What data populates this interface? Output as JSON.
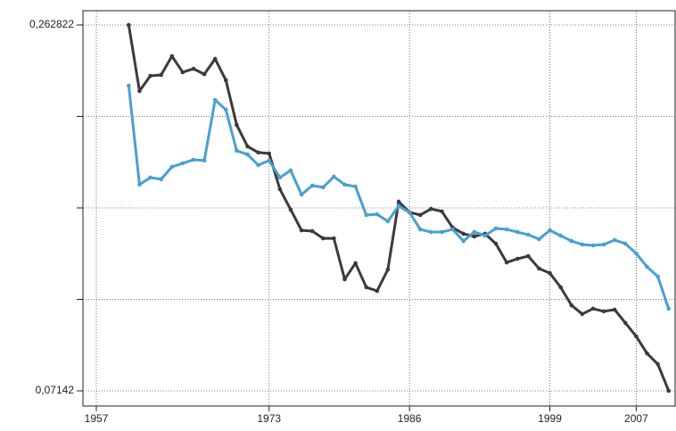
{
  "chart_data": {
    "type": "line",
    "x": [
      1960,
      1961,
      1962,
      1963,
      1964,
      1965,
      1966,
      1967,
      1968,
      1969,
      1970,
      1971,
      1972,
      1973,
      1974,
      1975,
      1976,
      1977,
      1978,
      1979,
      1980,
      1981,
      1982,
      1983,
      1984,
      1985,
      1986,
      1987,
      1988,
      1989,
      1990,
      1991,
      1992,
      1993,
      1994,
      1995,
      1996,
      1997,
      1998,
      1999,
      2000,
      2001,
      2002,
      2003,
      2004,
      2005,
      2006,
      2007,
      2008,
      2009,
      2010
    ],
    "series": [
      {
        "color": "#3b3b3b",
        "values": [
          0.2628,
          0.2283,
          0.2362,
          0.2367,
          0.2465,
          0.2381,
          0.2399,
          0.2371,
          0.2451,
          0.2339,
          0.2105,
          0.1993,
          0.1961,
          0.1956,
          0.1769,
          0.1662,
          0.1554,
          0.155,
          0.1512,
          0.1512,
          0.1298,
          0.1382,
          0.1256,
          0.1237,
          0.1349,
          0.1704,
          0.1648,
          0.1634,
          0.1666,
          0.1653,
          0.1568,
          0.1536,
          0.1522,
          0.1536,
          0.1484,
          0.1386,
          0.1405,
          0.1419,
          0.1354,
          0.133,
          0.1256,
          0.1162,
          0.1116,
          0.1144,
          0.113,
          0.1139,
          0.1069,
          0.0999,
          0.091,
          0.0854,
          0.07142
        ]
      },
      {
        "color": "#4a9fd0",
        "values": [
          0.2311,
          0.1793,
          0.183,
          0.1821,
          0.1886,
          0.1905,
          0.1923,
          0.1919,
          0.2236,
          0.2185,
          0.197,
          0.1951,
          0.1895,
          0.1919,
          0.183,
          0.1867,
          0.1741,
          0.1788,
          0.1779,
          0.1835,
          0.1793,
          0.1783,
          0.1634,
          0.1638,
          0.1601,
          0.1681,
          0.1648,
          0.1559,
          0.1545,
          0.1545,
          0.1559,
          0.1498,
          0.1545,
          0.1526,
          0.1564,
          0.1559,
          0.1545,
          0.1531,
          0.1508,
          0.1554,
          0.1526,
          0.1498,
          0.148,
          0.1475,
          0.148,
          0.1503,
          0.1484,
          0.1433,
          0.1363,
          0.1312,
          0.1144
        ]
      }
    ],
    "xlim": [
      1955.76,
      2010.6
    ],
    "ylim": [
      0.06348,
      0.27029
    ],
    "xticks": [
      1957,
      1973,
      1986,
      1999,
      2007
    ],
    "yticks": [
      {
        "value": 0.262822,
        "label": "0,262822"
      },
      {
        "value": 0.21497,
        "label": null
      },
      {
        "value": 0.16712,
        "label": null
      },
      {
        "value": 0.11927,
        "label": null
      },
      {
        "value": 0.07142,
        "label": "0,07142"
      }
    ],
    "grid": true
  }
}
